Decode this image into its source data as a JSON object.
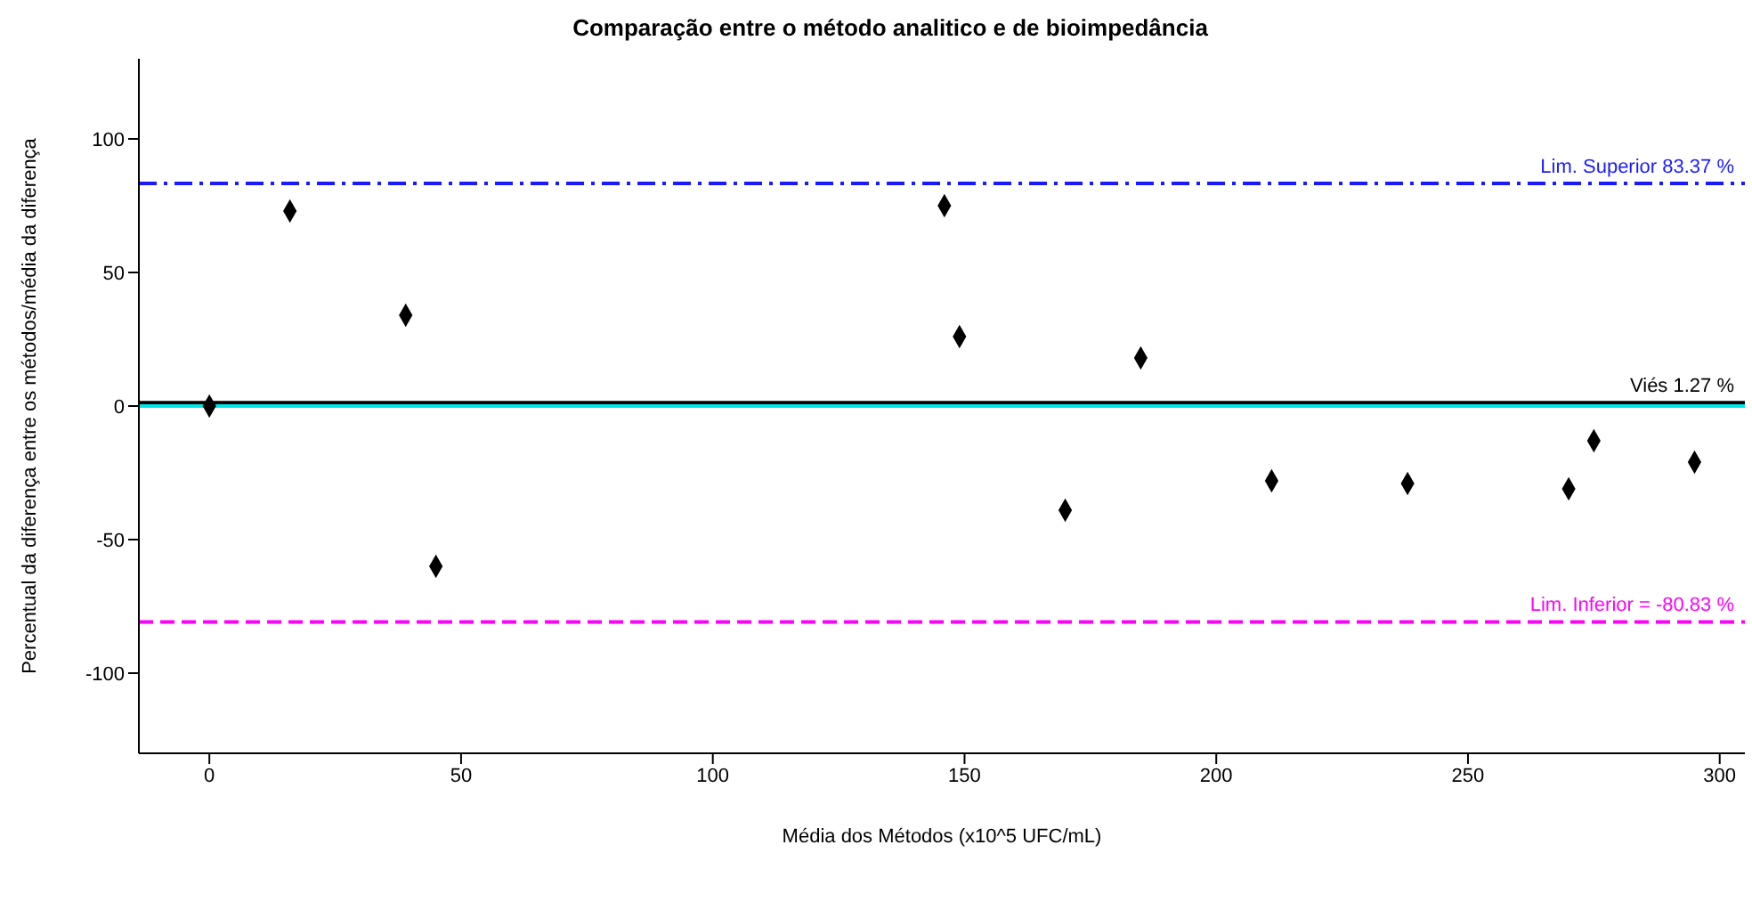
{
  "chart_data": {
    "type": "scatter",
    "title": "Comparação entre o método analitico e de bioimpedância",
    "xlabel": "Média dos Métodos (x10^5 UFC/mL)",
    "ylabel": "Percentual da diferença entre os métodos/média da diferença",
    "x": [
      0,
      16,
      39,
      45,
      146,
      149,
      170,
      185,
      211,
      238,
      270,
      275,
      295
    ],
    "series": [
      {
        "color": "#000000",
        "values": [
          0,
          73,
          34,
          -60,
          75,
          26,
          -39,
          18,
          -28,
          -29,
          -31,
          -13,
          -21
        ]
      }
    ],
    "xlim": [
      -14,
      305
    ],
    "xticks": [
      0,
      50,
      100,
      150,
      200,
      250,
      300
    ],
    "ylim": [
      -130,
      130
    ],
    "yticks": [
      -100,
      -50,
      0,
      50,
      100
    ],
    "ref_lines": [
      {
        "axis": "y",
        "value": 83.37,
        "label": "Lim. Superior    83.37 %",
        "color": "#1a1aff",
        "line_style": "dashdot"
      },
      {
        "axis": "y",
        "value": 1.27,
        "label": "Viés    1.27 %",
        "color": "#000000",
        "line_style": "solid"
      },
      {
        "axis": "y",
        "value": 0,
        "label": null,
        "color": "#00e5e5",
        "line_style": "solid"
      },
      {
        "axis": "y",
        "value": -80.83,
        "label": "Lim. Inferior = -80.83 %",
        "color": "#ff00ff",
        "line_style": "dashed"
      }
    ],
    "marker": "diamond",
    "grid": false,
    "legend": false
  }
}
